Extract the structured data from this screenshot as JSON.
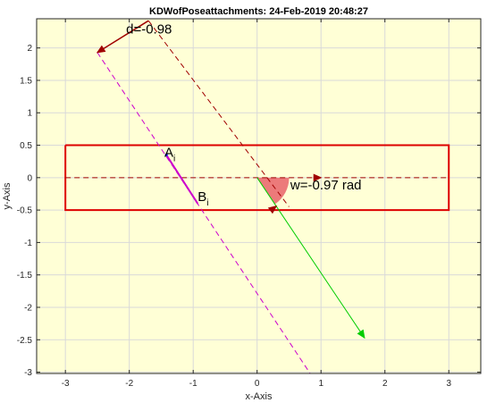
{
  "chart_data": {
    "type": "line",
    "title": "KDWofPoseattachments: 24-Feb-2019 20:48:27",
    "xlabel": "x-Axis",
    "ylabel": "y-Axis",
    "xlim": [
      -3.45,
      3.5
    ],
    "ylim": [
      -3.02,
      2.45
    ],
    "xticks": [
      -3,
      -2,
      -1,
      0,
      1,
      2,
      3
    ],
    "yticks": [
      -3,
      -2.5,
      -2,
      -1.5,
      -1,
      -0.5,
      0,
      0.5,
      1,
      1.5,
      2
    ],
    "xtick_labels": [
      "-3",
      "-2",
      "-1",
      "0",
      "1",
      "2",
      "3"
    ],
    "ytick_labels": [
      "-3",
      "-2.5",
      "-2",
      "-1.5",
      "-1",
      "-0.5",
      "0",
      "0.5",
      "1",
      "1.5",
      "2"
    ],
    "grid": true,
    "series": [
      {
        "color": "#dd0000",
        "style": "solid",
        "x": [
          -3,
          3,
          3,
          -3,
          -3
        ],
        "y": [
          0.5,
          0.5,
          -0.5,
          -0.5,
          0.5
        ]
      },
      {
        "color": "#a00000",
        "style": "dashed",
        "x": [
          -3,
          3
        ],
        "y": [
          0,
          0
        ]
      },
      {
        "color": "#a00000",
        "style": "dashed",
        "x": [
          -1.7,
          0.5
        ],
        "y": [
          2.42,
          -0.45
        ]
      },
      {
        "color": "#a00000",
        "style": "solid",
        "x": [
          -1.7,
          -2.5
        ],
        "y": [
          2.42,
          1.93
        ]
      },
      {
        "color": "#cc00cc",
        "style": "dashed",
        "x": [
          -2.5,
          0.83
        ],
        "y": [
          1.93,
          -3.02
        ]
      },
      {
        "color": "#cc00cc",
        "style": "solid",
        "x": [
          -1.42,
          -0.93
        ],
        "y": [
          0.35,
          -0.4
        ]
      },
      {
        "color": "#00cc00",
        "style": "solid",
        "x": [
          0,
          1.68
        ],
        "y": [
          0,
          -2.47
        ]
      }
    ],
    "arc": {
      "center": [
        0,
        0
      ],
      "radius_data_x": 0.5,
      "from_angle_rad": 0,
      "to_angle_rad": -0.97,
      "fill": "#ec7a7a"
    },
    "annotations": [
      {
        "label": "d=-0.98",
        "x": -2.05,
        "y": 2.22
      },
      {
        "label": "w=-0.97 rad",
        "x": 0.52,
        "y": -0.18
      },
      {
        "label": "A",
        "sub": "i",
        "x": -1.45,
        "y": 0.32
      },
      {
        "label": "B",
        "sub": "i",
        "x": -0.93,
        "y": -0.36
      }
    ],
    "colors": {
      "axes_bg": "#ffffd6",
      "figure_bg": "#ffffff",
      "grid": "#d9d9d9"
    }
  }
}
